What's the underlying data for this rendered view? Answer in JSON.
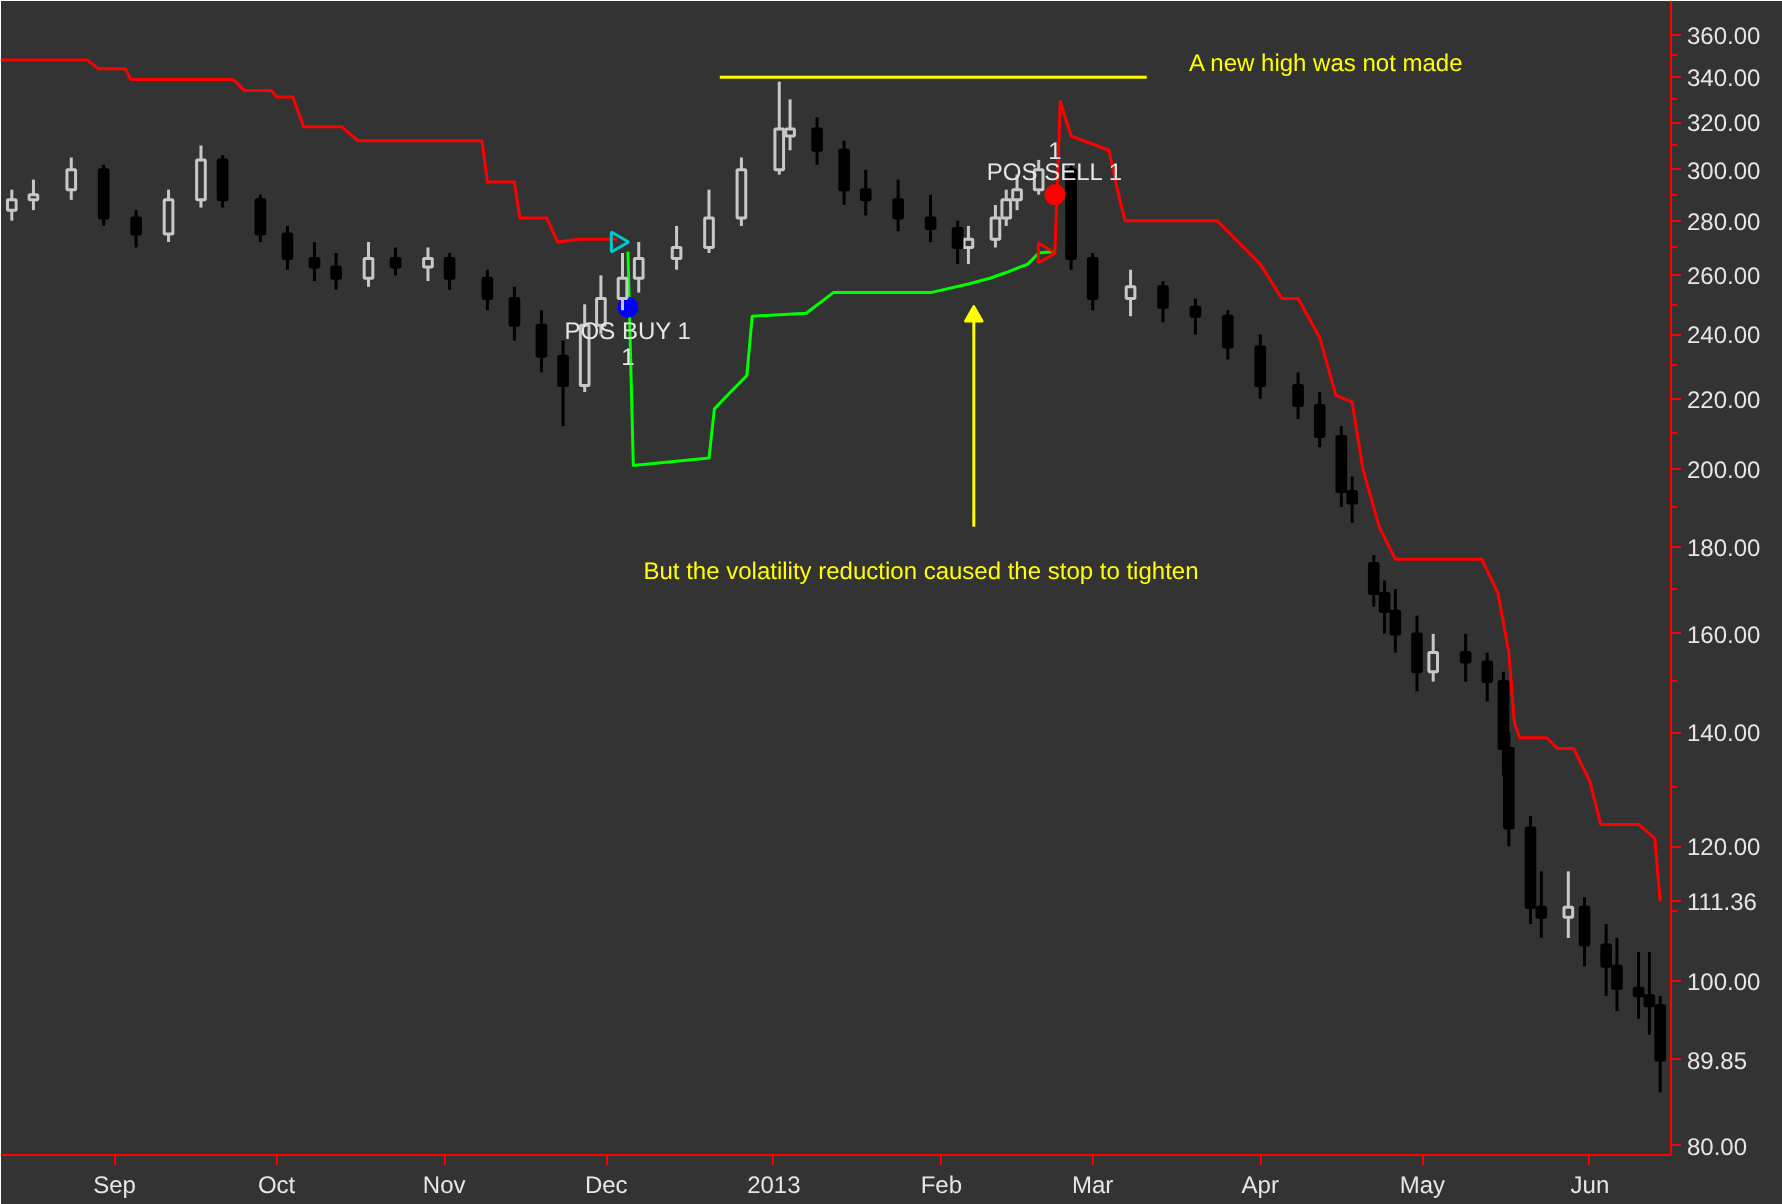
{
  "chart_data": {
    "type": "candlestick",
    "x": [
      "2012-08-13",
      "2012-08-17",
      "2012-08-24",
      "2012-08-30",
      "2012-09-05",
      "2012-09-11",
      "2012-09-17",
      "2012-09-21",
      "2012-09-28",
      "2012-10-03",
      "2012-10-08",
      "2012-10-12",
      "2012-10-18",
      "2012-10-23",
      "2012-10-29",
      "2012-11-02",
      "2012-11-09",
      "2012-11-14",
      "2012-11-19",
      "2012-11-23",
      "2012-11-27",
      "2012-11-30",
      "2012-12-04",
      "2012-12-07",
      "2012-12-14",
      "2012-12-20",
      "2012-12-26",
      "2013-01-02",
      "2013-01-04",
      "2013-01-09",
      "2013-01-14",
      "2013-01-18",
      "2013-01-24",
      "2013-01-30",
      "2013-02-04",
      "2013-02-06",
      "2013-02-11",
      "2013-02-13",
      "2013-02-15",
      "2013-02-19",
      "2013-02-25",
      "2013-03-01",
      "2013-03-08",
      "2013-03-14",
      "2013-03-20",
      "2013-03-26",
      "2013-04-01",
      "2013-04-08",
      "2013-04-12",
      "2013-04-16",
      "2013-04-18",
      "2013-04-22",
      "2013-04-24",
      "2013-04-26",
      "2013-04-30",
      "2013-05-03",
      "2013-05-09",
      "2013-05-13",
      "2013-05-16",
      "2013-05-17",
      "2013-05-21",
      "2013-05-23",
      "2013-05-28",
      "2013-05-31",
      "2013-06-04",
      "2013-06-06",
      "2013-06-10",
      "2013-06-12",
      "2013-06-14"
    ],
    "ohlc": [
      [
        284,
        292,
        280,
        288
      ],
      [
        288,
        296,
        284,
        290
      ],
      [
        292,
        305,
        288,
        300
      ],
      [
        300,
        302,
        278,
        281
      ],
      [
        281,
        284,
        270,
        275
      ],
      [
        275,
        292,
        272,
        288
      ],
      [
        288,
        310,
        285,
        304
      ],
      [
        304,
        306,
        285,
        288
      ],
      [
        288,
        290,
        272,
        275
      ],
      [
        275,
        278,
        262,
        266
      ],
      [
        266,
        272,
        258,
        263
      ],
      [
        263,
        268,
        255,
        259
      ],
      [
        259,
        272,
        256,
        266
      ],
      [
        266,
        270,
        260,
        263
      ],
      [
        263,
        270,
        258,
        266
      ],
      [
        266,
        268,
        255,
        259
      ],
      [
        259,
        262,
        248,
        252
      ],
      [
        252,
        256,
        238,
        243
      ],
      [
        243,
        248,
        228,
        233
      ],
      [
        233,
        238,
        212,
        224
      ],
      [
        224,
        250,
        222,
        243
      ],
      [
        243,
        260,
        240,
        252
      ],
      [
        252,
        268,
        248,
        259
      ],
      [
        259,
        272,
        254,
        266
      ],
      [
        266,
        278,
        262,
        270
      ],
      [
        270,
        292,
        268,
        281
      ],
      [
        281,
        305,
        278,
        300
      ],
      [
        300,
        338,
        298,
        317
      ],
      [
        314,
        330,
        308,
        317
      ],
      [
        317,
        322,
        302,
        308
      ],
      [
        308,
        312,
        286,
        292
      ],
      [
        292,
        300,
        282,
        288
      ],
      [
        288,
        296,
        276,
        281
      ],
      [
        281,
        290,
        272,
        277
      ],
      [
        277,
        280,
        264,
        270
      ],
      [
        270,
        278,
        264,
        273
      ],
      [
        273,
        286,
        270,
        281
      ],
      [
        281,
        292,
        278,
        288
      ],
      [
        288,
        298,
        284,
        292
      ],
      [
        292,
        304,
        290,
        300
      ],
      [
        300,
        302,
        262,
        266
      ],
      [
        266,
        268,
        248,
        252
      ],
      [
        252,
        262,
        246,
        256
      ],
      [
        256,
        258,
        244,
        249
      ],
      [
        249,
        252,
        240,
        246
      ],
      [
        246,
        248,
        232,
        236
      ],
      [
        236,
        240,
        220,
        224
      ],
      [
        224,
        228,
        214,
        218
      ],
      [
        218,
        222,
        206,
        209
      ],
      [
        209,
        212,
        190,
        194
      ],
      [
        194,
        198,
        186,
        191
      ],
      [
        176,
        178,
        166,
        169
      ],
      [
        169,
        172,
        160,
        165
      ],
      [
        165,
        170,
        156,
        160
      ],
      [
        160,
        164,
        148,
        152
      ],
      [
        152,
        160,
        150,
        156
      ],
      [
        156,
        160,
        150,
        154
      ],
      [
        154,
        156,
        146,
        150
      ],
      [
        150,
        152,
        132,
        137
      ],
      [
        137,
        140,
        120,
        123
      ],
      [
        123,
        125,
        108,
        110.5
      ],
      [
        110.5,
        116,
        106,
        109
      ],
      [
        109,
        116,
        106,
        110.5
      ],
      [
        110.5,
        112,
        102,
        105
      ],
      [
        105,
        108,
        98,
        102
      ],
      [
        102,
        106,
        96,
        99
      ],
      [
        99,
        104,
        95,
        98
      ],
      [
        98,
        104,
        93,
        96.7
      ],
      [
        96.7,
        98,
        86,
        89.85
      ]
    ],
    "series": [
      {
        "type": "line",
        "color": "#ff0000",
        "x": [
          "2012-08-11",
          "2012-08-27",
          "2012-08-29",
          "2012-09-03",
          "2012-09-04",
          "2012-09-23",
          "2012-09-25",
          "2012-09-30",
          "2012-10-01",
          "2012-10-04",
          "2012-10-06",
          "2012-10-13",
          "2012-10-16",
          "2012-11-08",
          "2012-11-09",
          "2012-11-14",
          "2012-11-15",
          "2012-11-20",
          "2012-11-22",
          "2012-11-26",
          "2012-12-03"
        ],
        "values": [
          348,
          348,
          344,
          344,
          339,
          339,
          334,
          334,
          331,
          331,
          318,
          318,
          312,
          312,
          295,
          295,
          281,
          281,
          272,
          273,
          273
        ]
      },
      {
        "type": "line",
        "color": "#ff0000",
        "x": [
          "2013-02-22",
          "2013-02-23",
          "2013-02-25",
          "2013-03-04",
          "2013-03-06",
          "2013-03-07",
          "2013-03-24",
          "2013-04-01",
          "2013-04-05",
          "2013-04-08",
          "2013-04-12",
          "2013-04-15",
          "2013-04-18",
          "2013-04-20",
          "2013-04-23",
          "2013-04-26",
          "2013-05-12",
          "2013-05-15",
          "2013-05-17",
          "2013-05-18",
          "2013-05-19",
          "2013-05-24",
          "2013-05-26",
          "2013-05-29",
          "2013-06-01",
          "2013-06-03",
          "2013-06-10",
          "2013-06-13",
          "2013-06-14"
        ],
        "values": [
          268,
          329,
          314,
          308,
          288,
          280,
          280,
          264,
          252,
          252,
          239,
          221,
          219,
          200,
          185,
          177,
          177,
          169,
          156,
          142,
          139,
          139,
          137,
          137,
          131,
          123.6,
          123.6,
          121.3,
          111.36
        ]
      },
      {
        "type": "line",
        "color": "#00ff00",
        "x": [
          "2012-12-05",
          "2012-12-06",
          "2012-12-20",
          "2012-12-21",
          "2012-12-24",
          "2012-12-27",
          "2012-12-28",
          "2013-01-07",
          "2013-01-12",
          "2013-01-30",
          "2013-02-06",
          "2013-02-10",
          "2013-02-13",
          "2013-02-17",
          "2013-02-19",
          "2013-02-22"
        ],
        "values": [
          268.5,
          201,
          203,
          217,
          222,
          227,
          246,
          247,
          254,
          254,
          257,
          259,
          261,
          264,
          268,
          268.5
        ]
      },
      {
        "type": "line",
        "color": "#ffff00",
        "x": [
          "2012-12-22",
          "2013-03-11"
        ],
        "values": [
          340,
          340
        ]
      },
      {
        "type": "line",
        "marker": "triangle",
        "color": "#ffff00",
        "x": [
          "2013-02-07",
          "2013-02-07"
        ],
        "values": [
          185,
          246
        ]
      },
      {
        "type": "scatter",
        "marker": "triangle",
        "color": "#00c8d0",
        "x": [
          "2012-12-03"
        ],
        "values": [
          272
        ]
      },
      {
        "type": "scatter",
        "marker": "circle",
        "color": "#0000ff",
        "x": [
          "2012-12-05"
        ],
        "values": [
          249
        ]
      },
      {
        "type": "scatter",
        "marker": "circle",
        "color": "#ff0000",
        "x": [
          "2013-02-22"
        ],
        "values": [
          290
        ]
      },
      {
        "type": "scatter",
        "marker": "triangle",
        "color": "#ff0000",
        "x": [
          "2013-02-20"
        ],
        "values": [
          268
        ]
      }
    ],
    "annotations": [
      "A new high was not made",
      "But the volatility reduction caused the stop to tighten",
      {
        "text": "POS BUY 1",
        "x": "2012-12-05",
        "y": 241
      },
      {
        "text": "1",
        "x": "2012-12-05",
        "y": 233
      },
      {
        "text": "POS SELL 1",
        "x": "2013-02-22",
        "y": 299
      },
      {
        "text": "1",
        "x": "2013-02-22",
        "y": 308
      }
    ],
    "xlim": [
      "2012-08-11",
      "2013-06-16"
    ],
    "xticks": [
      {
        "value": "2012-09-01",
        "label": "Sep"
      },
      {
        "value": "2012-10-01",
        "label": "Oct"
      },
      {
        "value": "2012-11-01",
        "label": "Nov"
      },
      {
        "value": "2012-12-01",
        "label": "Dec"
      },
      {
        "value": "2013-01-01",
        "label": "2013"
      },
      {
        "value": "2013-02-01",
        "label": "Feb"
      },
      {
        "value": "2013-03-01",
        "label": "Mar"
      },
      {
        "value": "2013-04-01",
        "label": "Apr"
      },
      {
        "value": "2013-05-01",
        "label": "May"
      },
      {
        "value": "2013-06-01",
        "label": "Jun"
      }
    ],
    "ylim": [
      79,
      377
    ],
    "log": true,
    "yticks": [
      {
        "value": 80,
        "label": "80.00"
      },
      {
        "value": 89.85,
        "label": "89.85"
      },
      {
        "value": 90,
        "label": null
      },
      {
        "value": 100,
        "label": "100.00"
      },
      {
        "value": 110,
        "label": null
      },
      {
        "value": 111.36,
        "label": "111.36"
      },
      {
        "value": 120,
        "label": "120.00"
      },
      {
        "value": 130,
        "label": null
      },
      {
        "value": 140,
        "label": "140.00"
      },
      {
        "value": 150,
        "label": null
      },
      {
        "value": 160,
        "label": "160.00"
      },
      {
        "value": 170,
        "label": null
      },
      {
        "value": 180,
        "label": "180.00"
      },
      {
        "value": 190,
        "label": null
      },
      {
        "value": 200,
        "label": "200.00"
      },
      {
        "value": 210,
        "label": null
      },
      {
        "value": 220,
        "label": "220.00"
      },
      {
        "value": 230,
        "label": null
      },
      {
        "value": 240,
        "label": "240.00"
      },
      {
        "value": 250,
        "label": null
      },
      {
        "value": 260,
        "label": "260.00"
      },
      {
        "value": 270,
        "label": null
      },
      {
        "value": 280,
        "label": "280.00"
      },
      {
        "value": 290,
        "label": null
      },
      {
        "value": 300,
        "label": "300.00"
      },
      {
        "value": 310,
        "label": null
      },
      {
        "value": 320,
        "label": "320.00"
      },
      {
        "value": 330,
        "label": null
      },
      {
        "value": 340,
        "label": "340.00"
      },
      {
        "value": 350,
        "label": null
      },
      {
        "value": 360,
        "label": "360.00"
      }
    ]
  }
}
